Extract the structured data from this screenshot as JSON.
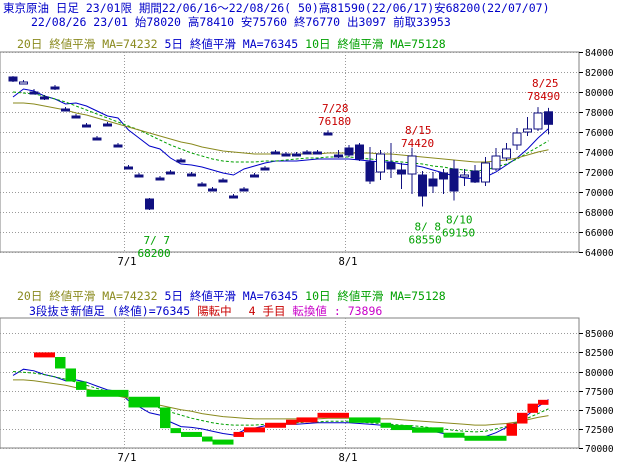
{
  "header": {
    "line1": "東京原油 日足 23/01限 期間22/06/16～22/08/26( 50)高81590(22/06/17)安68200(22/07/07)",
    "line2": "22/08/26 23/01 始78020 高78410 安75760 終76770 出3097 前取33953"
  },
  "legend": {
    "ma20": "20日 終値平滑 MA=74232",
    "ma5": "5日 終値平滑 MA=76345",
    "ma10": "10日 終値平滑 MA=75128"
  },
  "lower_info": {
    "three_line": "3段抜き新値足 (終値)=76345",
    "turn": "陽転中",
    "step": "4 手目",
    "conversion": "転換値 : 73896"
  },
  "colors": {
    "up_candle": "#ffffff",
    "down_candle": "#101080",
    "ma5": "#0000c8",
    "ma10": "#00a000",
    "ma20": "#8a8a1e",
    "up_bar": "#ff0000",
    "down_bar": "#00cc00",
    "grid": "#9a9a9a"
  },
  "chart_data": [
    {
      "type": "candlestick",
      "title": "東京原油 日足 23/01限",
      "x_tick_labels": [
        "7/1",
        "8/1"
      ],
      "ylim": [
        64000,
        84000
      ],
      "y_ticks": [
        64000,
        66000,
        68000,
        70000,
        72000,
        74000,
        76000,
        78000,
        80000,
        82000,
        84000
      ],
      "y_tick_labels": [
        "64000",
        "66000",
        "68000",
        "70000",
        "72000",
        "74000",
        "76000",
        "78000",
        "80000",
        "82000",
        "84000"
      ],
      "candles": [
        {
          "i": 0,
          "o": 81500,
          "h": 81590,
          "l": 81000,
          "c": 81100
        },
        {
          "i": 1,
          "o": 81000,
          "h": 81200,
          "l": 80900,
          "c": 81000
        },
        {
          "i": 2,
          "o": 80000,
          "h": 80300,
          "l": 79800,
          "c": 79900
        },
        {
          "i": 3,
          "o": 79500,
          "h": 79700,
          "l": 79200,
          "c": 79300
        },
        {
          "i": 4,
          "o": 80500,
          "h": 80700,
          "l": 80200,
          "c": 80300
        },
        {
          "i": 5,
          "o": 78300,
          "h": 78500,
          "l": 78100,
          "c": 78200
        },
        {
          "i": 6,
          "o": 77600,
          "h": 77800,
          "l": 77400,
          "c": 77500
        },
        {
          "i": 7,
          "o": 76700,
          "h": 76900,
          "l": 76500,
          "c": 76600
        },
        {
          "i": 8,
          "o": 75400,
          "h": 75600,
          "l": 75200,
          "c": 75300
        },
        {
          "i": 9,
          "o": 76800,
          "h": 77000,
          "l": 76600,
          "c": 76700
        },
        {
          "i": 10,
          "o": 74700,
          "h": 74900,
          "l": 74500,
          "c": 74600
        },
        {
          "i": 11,
          "o": 72500,
          "h": 72700,
          "l": 72300,
          "c": 72400
        },
        {
          "i": 12,
          "o": 71700,
          "h": 71900,
          "l": 71500,
          "c": 71600
        },
        {
          "i": 13,
          "o": 69300,
          "h": 69400,
          "l": 68200,
          "c": 68300
        },
        {
          "i": 14,
          "o": 71400,
          "h": 71600,
          "l": 71200,
          "c": 71300
        },
        {
          "i": 15,
          "o": 72000,
          "h": 72200,
          "l": 71800,
          "c": 71900
        },
        {
          "i": 16,
          "o": 73200,
          "h": 73400,
          "l": 73000,
          "c": 73100
        },
        {
          "i": 17,
          "o": 71800,
          "h": 72000,
          "l": 71600,
          "c": 71700
        },
        {
          "i": 18,
          "o": 70800,
          "h": 71000,
          "l": 70600,
          "c": 70700
        },
        {
          "i": 19,
          "o": 70300,
          "h": 70500,
          "l": 70100,
          "c": 70200
        },
        {
          "i": 20,
          "o": 71200,
          "h": 71400,
          "l": 71000,
          "c": 71100
        },
        {
          "i": 21,
          "o": 69600,
          "h": 69800,
          "l": 69400,
          "c": 69500
        },
        {
          "i": 22,
          "o": 70300,
          "h": 70500,
          "l": 70100,
          "c": 70200
        },
        {
          "i": 23,
          "o": 71700,
          "h": 71900,
          "l": 71500,
          "c": 71600
        },
        {
          "i": 24,
          "o": 72400,
          "h": 72600,
          "l": 72200,
          "c": 72300
        },
        {
          "i": 25,
          "o": 74000,
          "h": 74200,
          "l": 73800,
          "c": 73900
        },
        {
          "i": 26,
          "o": 73800,
          "h": 74000,
          "l": 73600,
          "c": 73700
        },
        {
          "i": 27,
          "o": 73800,
          "h": 74000,
          "l": 73600,
          "c": 73700
        },
        {
          "i": 28,
          "o": 74000,
          "h": 74200,
          "l": 73800,
          "c": 73900
        },
        {
          "i": 29,
          "o": 74000,
          "h": 74200,
          "l": 73800,
          "c": 73900
        },
        {
          "i": 30,
          "o": 75900,
          "h": 76180,
          "l": 75700,
          "c": 75800
        },
        {
          "i": 31,
          "o": 73700,
          "h": 74200,
          "l": 73400,
          "c": 73500
        },
        {
          "i": 32,
          "o": 74400,
          "h": 74700,
          "l": 73500,
          "c": 73700
        },
        {
          "i": 33,
          "o": 74700,
          "h": 74900,
          "l": 73100,
          "c": 73300
        },
        {
          "i": 34,
          "o": 73000,
          "h": 74500,
          "l": 70800,
          "c": 71100
        },
        {
          "i": 35,
          "o": 72000,
          "h": 74200,
          "l": 71200,
          "c": 73800
        },
        {
          "i": 36,
          "o": 72900,
          "h": 74900,
          "l": 71400,
          "c": 72300
        },
        {
          "i": 37,
          "o": 72200,
          "h": 72900,
          "l": 70300,
          "c": 71800
        },
        {
          "i": 38,
          "o": 71800,
          "h": 74420,
          "l": 69800,
          "c": 73600
        },
        {
          "i": 39,
          "o": 71700,
          "h": 72100,
          "l": 68550,
          "c": 69600
        },
        {
          "i": 40,
          "o": 71300,
          "h": 72000,
          "l": 69900,
          "c": 70600
        },
        {
          "i": 41,
          "o": 71900,
          "h": 72300,
          "l": 69800,
          "c": 71300
        },
        {
          "i": 42,
          "o": 72300,
          "h": 73200,
          "l": 69150,
          "c": 70100
        },
        {
          "i": 43,
          "o": 71700,
          "h": 72300,
          "l": 70600,
          "c": 71700
        },
        {
          "i": 44,
          "o": 72100,
          "h": 72700,
          "l": 70900,
          "c": 71000
        },
        {
          "i": 45,
          "o": 71000,
          "h": 73500,
          "l": 70600,
          "c": 72900
        },
        {
          "i": 46,
          "o": 72300,
          "h": 74400,
          "l": 72100,
          "c": 73600
        },
        {
          "i": 47,
          "o": 73400,
          "h": 74900,
          "l": 73100,
          "c": 74300
        },
        {
          "i": 48,
          "o": 74700,
          "h": 76400,
          "l": 74200,
          "c": 75900
        },
        {
          "i": 49,
          "o": 76000,
          "h": 77500,
          "l": 75600,
          "c": 76300
        },
        {
          "i": 50,
          "o": 76300,
          "h": 78490,
          "l": 76100,
          "c": 77900
        },
        {
          "i": 51,
          "o": 78020,
          "h": 78410,
          "l": 75760,
          "c": 76770
        }
      ],
      "series": [
        {
          "name": "5日 終値平滑",
          "values": [
            79500,
            80300,
            80100,
            79600,
            79300,
            78800,
            78900,
            78600,
            78100,
            77600,
            77400,
            76200,
            75400,
            74600,
            74300,
            73400,
            72800,
            72700,
            72500,
            72200,
            71900,
            71700,
            72300,
            72600,
            72900,
            73100,
            73100,
            73100,
            73200,
            73300,
            73300,
            73300,
            73300,
            73200,
            73100,
            73000,
            73000,
            72800,
            72700,
            72500,
            72200,
            71900,
            71600,
            71400,
            71300,
            71500,
            72000,
            72700,
            73400,
            74300,
            75400,
            76345
          ]
        },
        {
          "name": "10日 終値平滑",
          "values": [
            80000,
            79900,
            79800,
            79600,
            79300,
            79000,
            78600,
            78200,
            77800,
            77400,
            77000,
            76600,
            76200,
            75700,
            75200,
            74700,
            74300,
            73900,
            73600,
            73300,
            73100,
            73000,
            73000,
            73000,
            73100,
            73100,
            73200,
            73300,
            73400,
            73400,
            73500,
            73500,
            73500,
            73400,
            73300,
            73200,
            73100,
            73000,
            72900,
            72800,
            72600,
            72500,
            72300,
            72200,
            72100,
            72200,
            72500,
            72800,
            73300,
            73900,
            74500,
            75128
          ]
        },
        {
          "name": "20日 終値平滑",
          "values": [
            78900,
            78900,
            78800,
            78600,
            78400,
            78200,
            77900,
            77700,
            77400,
            77100,
            76800,
            76500,
            76200,
            75900,
            75600,
            75300,
            75000,
            74800,
            74500,
            74300,
            74100,
            74000,
            73900,
            73800,
            73800,
            73800,
            73800,
            73800,
            73800,
            73800,
            73900,
            73900,
            73900,
            73900,
            73900,
            73800,
            73800,
            73700,
            73600,
            73500,
            73400,
            73300,
            73200,
            73100,
            73000,
            73000,
            73100,
            73200,
            73400,
            73700,
            74000,
            74232
          ]
        }
      ],
      "annotations": [
        {
          "text": "7/ 7",
          "i": 13
        },
        {
          "text": "68200",
          "i": 13
        },
        {
          "text": "7/28",
          "i": 30
        },
        {
          "text": "76180",
          "i": 30
        },
        {
          "text": "8/15",
          "i": 38
        },
        {
          "text": "74420",
          "i": 38
        },
        {
          "text": "8/ 8",
          "i": 39
        },
        {
          "text": "68550",
          "i": 39
        },
        {
          "text": "8/10",
          "i": 42
        },
        {
          "text": "69150",
          "i": 42
        },
        {
          "text": "8/25",
          "i": 50
        },
        {
          "text": "78490",
          "i": 50
        }
      ]
    },
    {
      "type": "three_line_break",
      "title": "3段抜き新値足 (終値)=76345",
      "x_tick_labels": [
        "7/1",
        "8/1"
      ],
      "ylim": [
        70000,
        87000
      ],
      "y_ticks": [
        70000,
        72500,
        75000,
        77500,
        80000,
        82500,
        85000
      ],
      "y_tick_labels": [
        "70000",
        "72500",
        "75000",
        "77500",
        "80000",
        "82500",
        "85000"
      ],
      "bars": [
        {
          "i0": 2,
          "i1": 4,
          "from": 81900,
          "to": 82500,
          "dir": "up"
        },
        {
          "i0": 4,
          "i1": 5,
          "from": 81900,
          "to": 80400,
          "dir": "down"
        },
        {
          "i0": 5,
          "i1": 6,
          "from": 80400,
          "to": 78700,
          "dir": "down"
        },
        {
          "i0": 6,
          "i1": 7,
          "from": 78700,
          "to": 77600,
          "dir": "down"
        },
        {
          "i0": 7,
          "i1": 11,
          "from": 77600,
          "to": 76700,
          "dir": "down"
        },
        {
          "i0": 11,
          "i1": 14,
          "from": 76700,
          "to": 75300,
          "dir": "down"
        },
        {
          "i0": 14,
          "i1": 15,
          "from": 75300,
          "to": 72600,
          "dir": "down"
        },
        {
          "i0": 15,
          "i1": 16,
          "from": 72600,
          "to": 72100,
          "dir": "down"
        },
        {
          "i0": 16,
          "i1": 18,
          "from": 72100,
          "to": 71500,
          "dir": "down"
        },
        {
          "i0": 18,
          "i1": 19,
          "from": 71500,
          "to": 71100,
          "dir": "down"
        },
        {
          "i0": 19,
          "i1": 21,
          "from": 71100,
          "to": 70800,
          "dir": "down"
        },
        {
          "i0": 21,
          "i1": 22,
          "from": 71500,
          "to": 72100,
          "dir": "up"
        },
        {
          "i0": 22,
          "i1": 24,
          "from": 72100,
          "to": 72700,
          "dir": "up"
        },
        {
          "i0": 24,
          "i1": 26,
          "from": 72700,
          "to": 73300,
          "dir": "up"
        },
        {
          "i0": 26,
          "i1": 27,
          "from": 73300,
          "to": 73700,
          "dir": "up"
        },
        {
          "i0": 27,
          "i1": 29,
          "from": 73700,
          "to": 74000,
          "dir": "up"
        },
        {
          "i0": 29,
          "i1": 32,
          "from": 74000,
          "to": 74600,
          "dir": "up"
        },
        {
          "i0": 32,
          "i1": 35,
          "from": 74000,
          "to": 73300,
          "dir": "down"
        },
        {
          "i0": 35,
          "i1": 36,
          "from": 73300,
          "to": 73000,
          "dir": "down"
        },
        {
          "i0": 36,
          "i1": 38,
          "from": 73000,
          "to": 72700,
          "dir": "down"
        },
        {
          "i0": 38,
          "i1": 41,
          "from": 72700,
          "to": 72000,
          "dir": "down"
        },
        {
          "i0": 41,
          "i1": 43,
          "from": 72000,
          "to": 71600,
          "dir": "down"
        },
        {
          "i0": 43,
          "i1": 47,
          "from": 71600,
          "to": 71300,
          "dir": "down"
        },
        {
          "i0": 47,
          "i1": 48,
          "from": 71600,
          "to": 73200,
          "dir": "up"
        },
        {
          "i0": 48,
          "i1": 49,
          "from": 73200,
          "to": 74600,
          "dir": "up"
        },
        {
          "i0": 49,
          "i1": 50,
          "from": 74600,
          "to": 75800,
          "dir": "up"
        },
        {
          "i0": 50,
          "i1": 51,
          "from": 75800,
          "to": 76300,
          "dir": "up"
        }
      ],
      "series": [
        {
          "name": "5日 終値平滑",
          "values": [
            79500,
            80300,
            80100,
            79600,
            79300,
            78800,
            78900,
            78600,
            78100,
            77600,
            77400,
            76200,
            75400,
            74600,
            74300,
            73400,
            72800,
            72700,
            72500,
            72200,
            71900,
            71700,
            72300,
            72600,
            72900,
            73100,
            73100,
            73100,
            73200,
            73300,
            73300,
            73300,
            73300,
            73200,
            73100,
            73000,
            73000,
            72800,
            72700,
            72500,
            72200,
            71900,
            71600,
            71400,
            71300,
            71500,
            72000,
            72700,
            73400,
            74300,
            75400,
            76345
          ]
        },
        {
          "name": "10日 終値平滑",
          "values": [
            80000,
            79900,
            79800,
            79600,
            79300,
            79000,
            78600,
            78200,
            77800,
            77400,
            77000,
            76600,
            76200,
            75700,
            75200,
            74700,
            74300,
            73900,
            73600,
            73300,
            73100,
            73000,
            73000,
            73000,
            73100,
            73100,
            73200,
            73300,
            73400,
            73400,
            73500,
            73500,
            73500,
            73400,
            73300,
            73200,
            73100,
            73000,
            72900,
            72800,
            72600,
            72500,
            72300,
            72200,
            72100,
            72200,
            72500,
            72800,
            73300,
            73900,
            74500,
            75128
          ]
        },
        {
          "name": "20日 終値平滑",
          "values": [
            78900,
            78900,
            78800,
            78600,
            78400,
            78200,
            77900,
            77700,
            77400,
            77100,
            76800,
            76500,
            76200,
            75900,
            75600,
            75300,
            75000,
            74800,
            74500,
            74300,
            74100,
            74000,
            73900,
            73800,
            73800,
            73800,
            73800,
            73800,
            73800,
            73800,
            73900,
            73900,
            73900,
            73900,
            73900,
            73800,
            73800,
            73700,
            73600,
            73500,
            73400,
            73300,
            73200,
            73100,
            73000,
            73000,
            73100,
            73200,
            73400,
            73700,
            74000,
            74232
          ]
        }
      ]
    }
  ]
}
